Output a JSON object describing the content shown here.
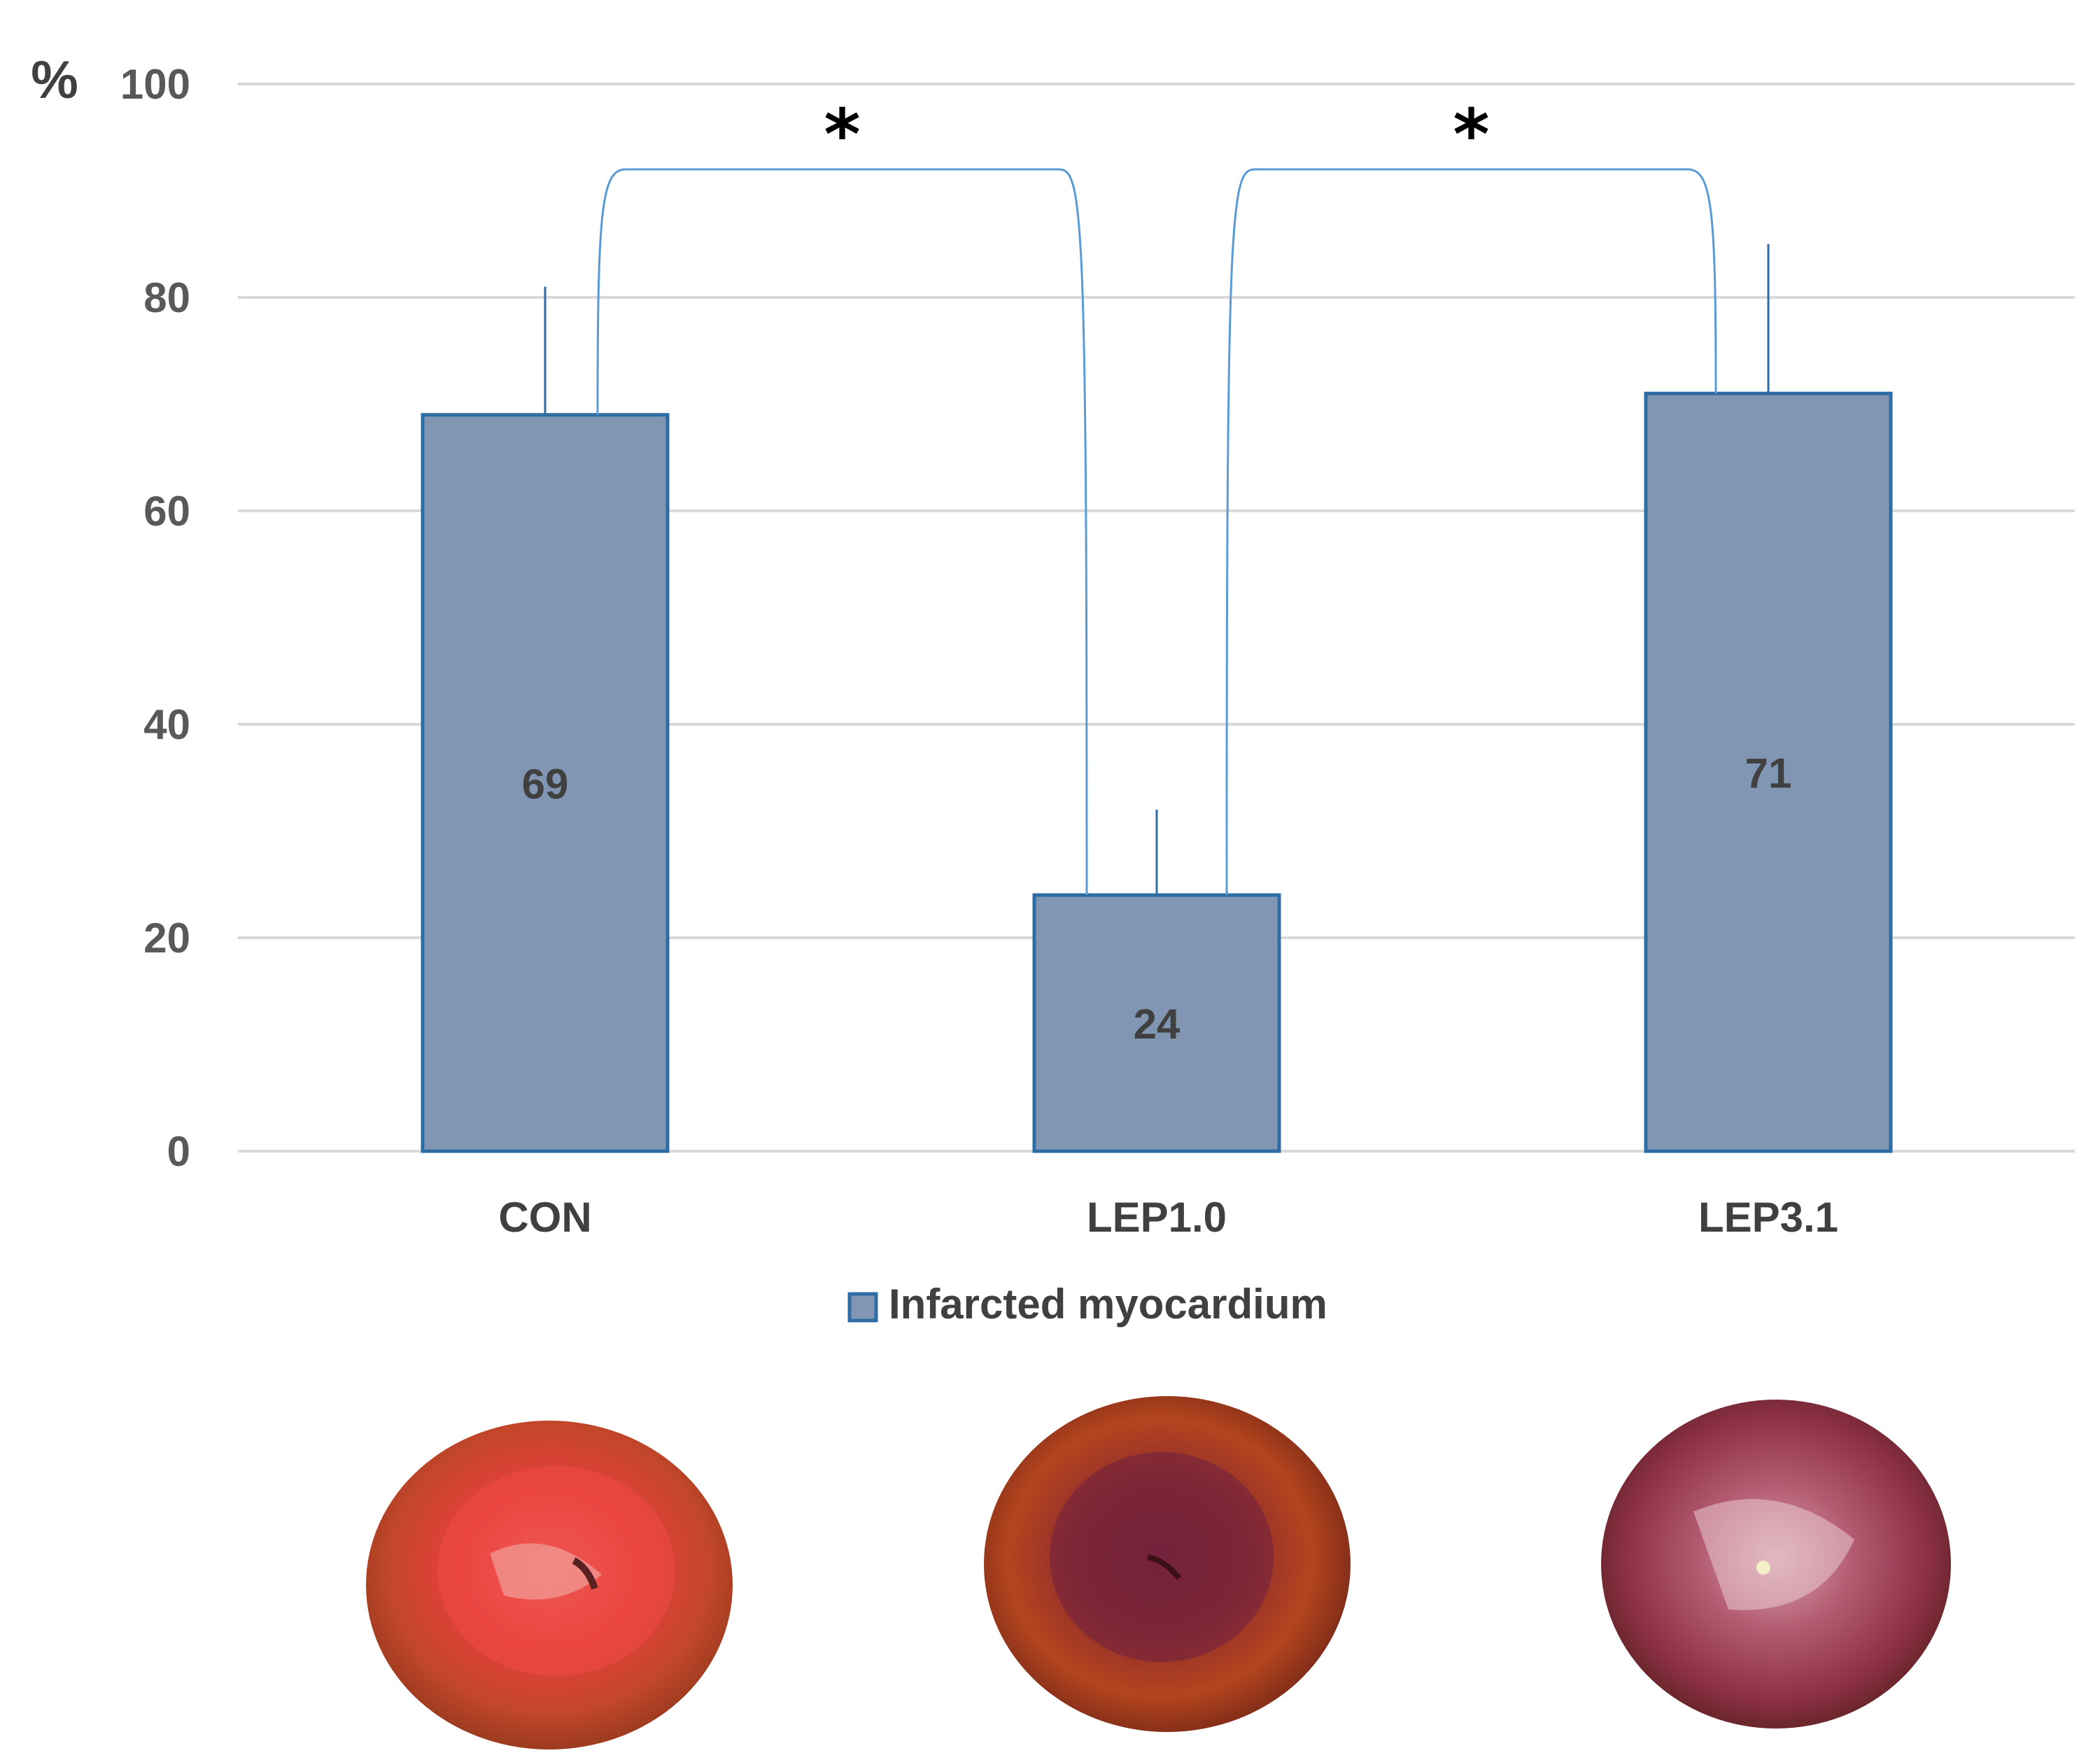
{
  "chart_data": {
    "type": "bar",
    "title": "",
    "xlabel": "",
    "ylabel": "%",
    "ylim": [
      0,
      100
    ],
    "yticks": [
      0,
      20,
      40,
      60,
      80,
      100
    ],
    "grid": true,
    "legend_position": "bottom",
    "categories": [
      "CON",
      "LEP1.0",
      "LEP3.1"
    ],
    "series": [
      {
        "name": "Infarcted myocardium",
        "values": [
          69,
          24,
          71
        ],
        "error_upper": [
          81,
          32,
          85
        ],
        "data_labels": [
          "69",
          "24",
          "71"
        ]
      }
    ],
    "significance": [
      {
        "from": "CON",
        "to": "LEP1.0",
        "level": 92,
        "label": "*"
      },
      {
        "from": "LEP1.0",
        "to": "LEP3.1",
        "level": 92,
        "label": "*"
      }
    ]
  },
  "colors": {
    "bar_fill": "#8196b2",
    "bar_edge": "#2e6da4",
    "grid": "#d9d9d9",
    "bracket": "#5b9bd5",
    "errorbar": "#2e6da4"
  },
  "photos": [
    {
      "category": "CON",
      "icon": "heart-slice-pale-red"
    },
    {
      "category": "LEP1.0",
      "icon": "heart-slice-dark-red"
    },
    {
      "category": "LEP3.1",
      "icon": "heart-slice-pale-purple"
    }
  ]
}
